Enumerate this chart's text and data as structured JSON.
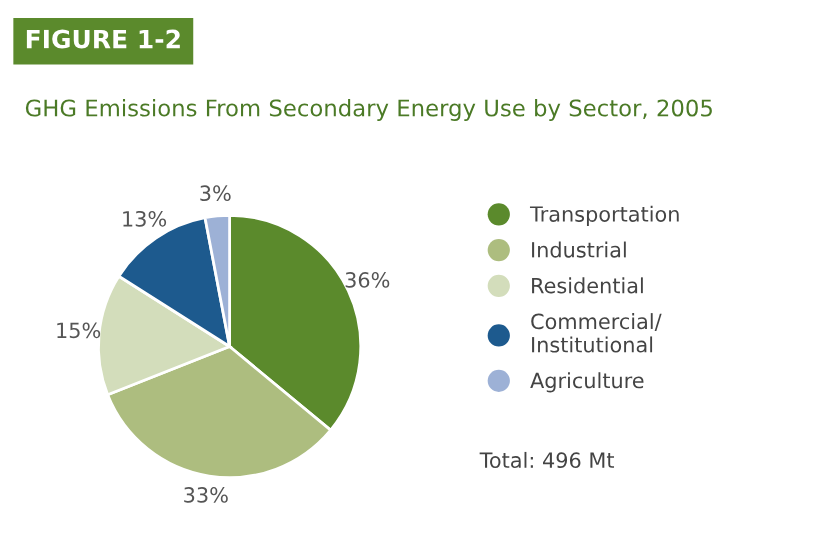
{
  "chart_data": {
    "type": "pie",
    "title": "FIGURE 1-2",
    "subtitle": "GHG Emissions From Secondary Energy Use by Sector, 2005",
    "categories": [
      "Transportation",
      "Industrial",
      "Residential",
      "Commercial/\nInstitutional",
      "Agriculture"
    ],
    "values": [
      36,
      33,
      15,
      13,
      3
    ],
    "value_labels": [
      "36%",
      "33%",
      "15%",
      "13%",
      "3%"
    ],
    "colors": [
      "#5b8a2c",
      "#adbd7f",
      "#d3ddbb",
      "#1d5a8e",
      "#9db1d6"
    ],
    "legend": "right",
    "annotations": [
      "Total: 496 Mt"
    ]
  }
}
